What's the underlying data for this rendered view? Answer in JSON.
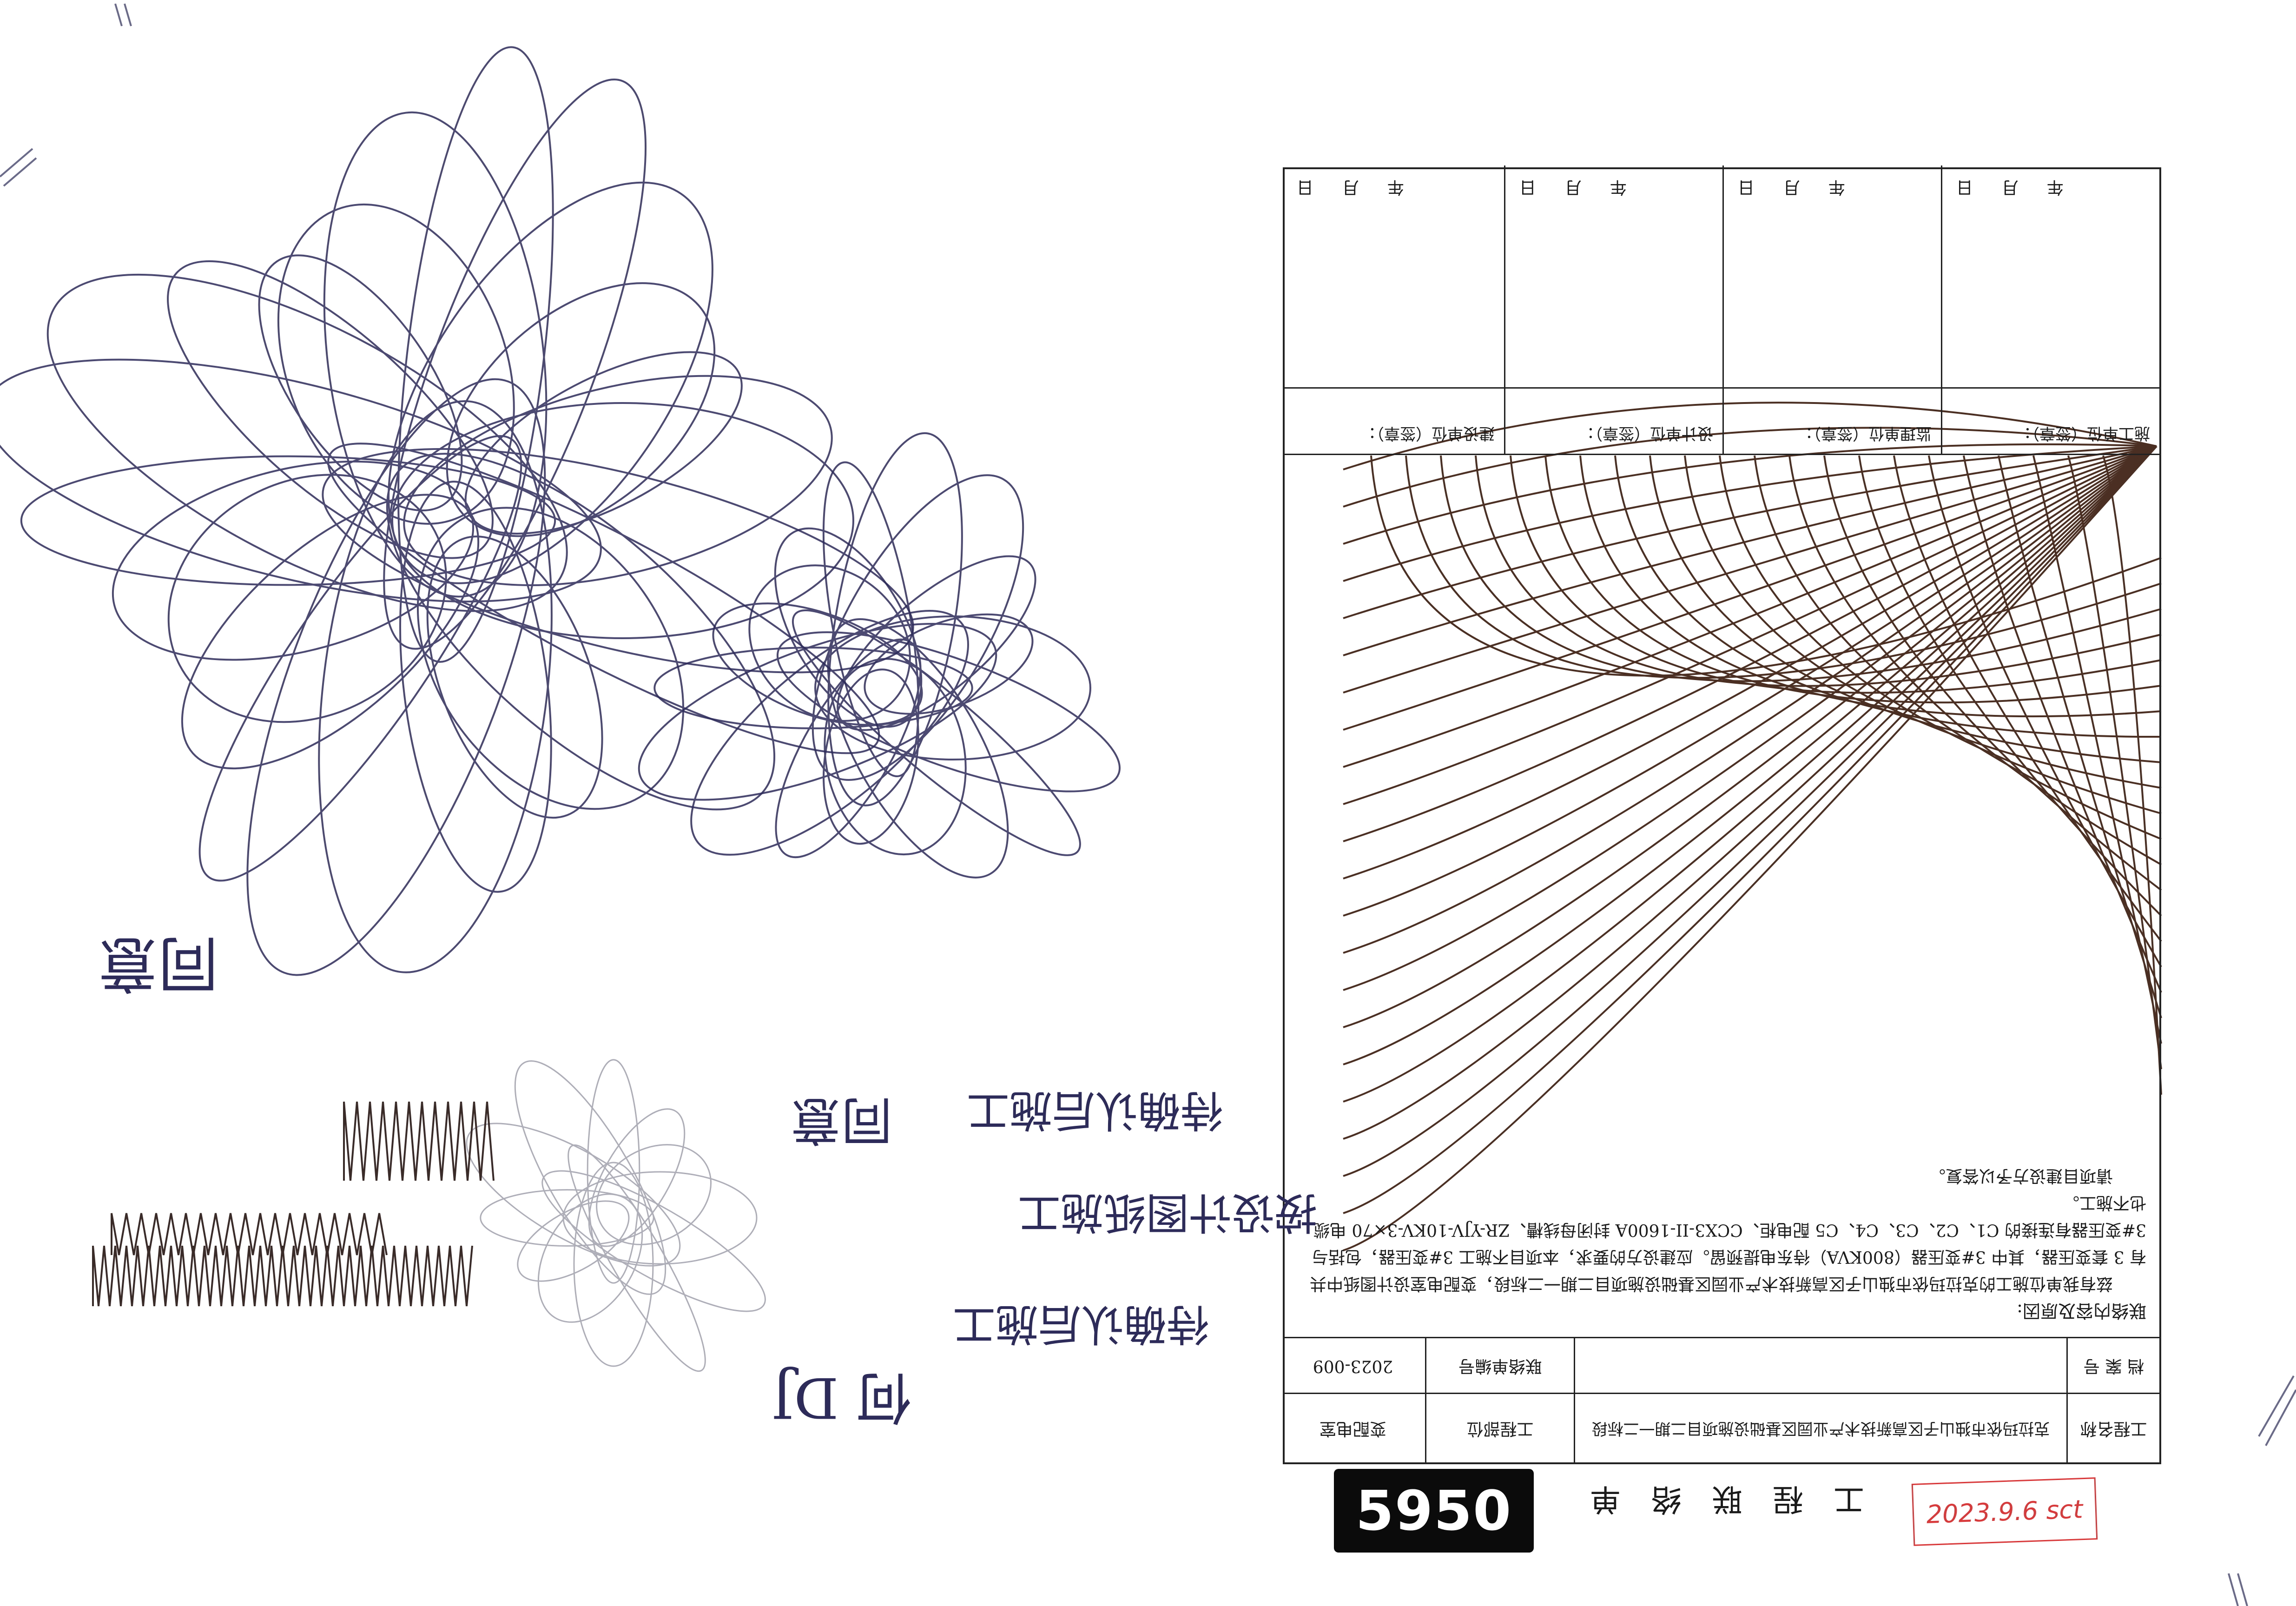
{
  "form": {
    "title": "工 程 联 络 单",
    "row1": {
      "project_name_label": "工程名称",
      "project_name_value": "克拉玛依市独山子区高新技术产业园区基础设施项目二期一二标段",
      "project_part_label": "工程部位",
      "project_part_value": "变配电室"
    },
    "row2": {
      "archive_label": "档 案 号",
      "archive_value": "",
      "contact_no_label": "联络单编号",
      "contact_no_value": "2023-009"
    },
    "content": {
      "heading": "联络内容及原因:",
      "body": "兹有我单位施工的克拉玛依市独山子区高新技术产业园区基础设施项目二期一二标段，变配电室设计图纸中共有 3 套变压器，其中 3#变压器（800KVA）待东电提预留。应建设方的要求，本项目不施工 3#变压器，包括与 3#变压器有连接的 C1、C2、C3、C4、C5 配电柜、CCX3-II-1600A 封闭母线槽、ZR-YJV-10KV-3×70 电缆也不施工。",
      "closing": "请项目建设方予以答复。"
    },
    "signatures": [
      {
        "label": "施工单位（签章）：",
        "date": "年 月 日"
      },
      {
        "label": "监理单位（签章）：",
        "date": "年 月 日"
      },
      {
        "label": "设计单位（签章）：",
        "date": "年 月 日"
      },
      {
        "label": "建设单位（签章）：",
        "date": "年 月 日"
      }
    ]
  },
  "handwriting": {
    "line1": "同意",
    "line2": "按设计图纸施工",
    "line3": "待确认后施工",
    "line4": "同意",
    "signature": "何 DJ"
  },
  "stamp_number": "5950",
  "date_note": "2023.9.6 sct",
  "colors": {
    "ink_blue": "#2d2b5a",
    "ink_brown": "#4a2f22",
    "pencil": "#9a9aa8",
    "red_note": "#d8393b",
    "table_line": "#222222"
  }
}
